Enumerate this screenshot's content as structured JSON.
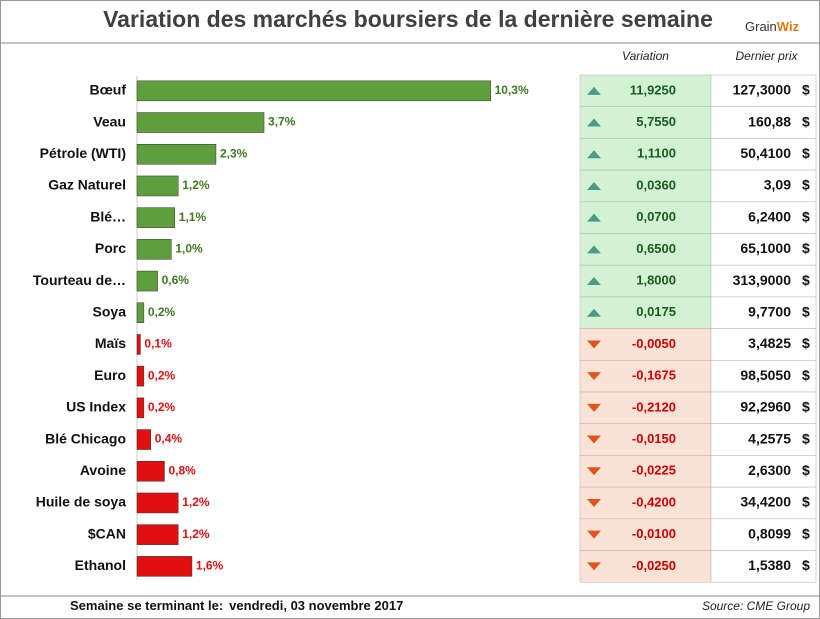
{
  "title": "Variation des marchés boursiers de la dernière semaine",
  "logo": {
    "left": "Grain",
    "right": "Wiz"
  },
  "chart_data": {
    "type": "bar",
    "orientation": "horizontal",
    "categories": [
      "Bœuf",
      "Veau",
      "Pétrole (WTI)",
      "Gaz Naturel",
      "Blé…",
      "Porc",
      "Tourteau de…",
      "Soya",
      "Maïs",
      "Euro",
      "US Index",
      "Blé Chicago",
      "Avoine",
      "Huile de soya",
      "$CAN",
      "Ethanol"
    ],
    "values": [
      10.3,
      3.7,
      2.3,
      1.2,
      1.1,
      1.0,
      0.6,
      0.2,
      0.1,
      0.2,
      0.2,
      0.4,
      0.8,
      1.2,
      1.2,
      1.6
    ],
    "value_labels": [
      "10,3%",
      "3,7%",
      "2,3%",
      "1,2%",
      "1,1%",
      "1,0%",
      "0,6%",
      "0,2%",
      "0,1%",
      "0,2%",
      "0,2%",
      "0,4%",
      "0,8%",
      "1,2%",
      "1,2%",
      "1,6%"
    ],
    "colors": [
      "#5f9e3c",
      "#5f9e3c",
      "#5f9e3c",
      "#5f9e3c",
      "#5f9e3c",
      "#5f9e3c",
      "#5f9e3c",
      "#5f9e3c",
      "#e01010",
      "#e01010",
      "#e01010",
      "#e01010",
      "#e01010",
      "#e01010",
      "#e01010",
      "#e01010"
    ],
    "xlim": [
      0,
      12
    ]
  },
  "table": {
    "headers": [
      "Variation",
      "Dernier prix"
    ],
    "currency": "$",
    "rows": [
      {
        "direction": "up",
        "variation": "11,9250",
        "price": "127,3000"
      },
      {
        "direction": "up",
        "variation": "5,7550",
        "price": "160,88"
      },
      {
        "direction": "up",
        "variation": "1,1100",
        "price": "50,4100"
      },
      {
        "direction": "up",
        "variation": "0,0360",
        "price": "3,09"
      },
      {
        "direction": "up",
        "variation": "0,0700",
        "price": "6,2400"
      },
      {
        "direction": "up",
        "variation": "0,6500",
        "price": "65,1000"
      },
      {
        "direction": "up",
        "variation": "1,8000",
        "price": "313,9000"
      },
      {
        "direction": "up",
        "variation": "0,0175",
        "price": "9,7700"
      },
      {
        "direction": "down",
        "variation": "-0,0050",
        "price": "3,4825"
      },
      {
        "direction": "down",
        "variation": "-0,1675",
        "price": "98,5050"
      },
      {
        "direction": "down",
        "variation": "-0,2120",
        "price": "92,2960"
      },
      {
        "direction": "down",
        "variation": "-0,0150",
        "price": "4,2575"
      },
      {
        "direction": "down",
        "variation": "-0,0225",
        "price": "2,6300"
      },
      {
        "direction": "down",
        "variation": "-0,4200",
        "price": "34,4200"
      },
      {
        "direction": "down",
        "variation": "-0,0100",
        "price": "0,8099"
      },
      {
        "direction": "down",
        "variation": "-0,0250",
        "price": "1,5380"
      }
    ]
  },
  "footer": {
    "label": "Semaine se terminant le:",
    "date": "vendredi, 03 novembre 2017",
    "source": "Source: CME Group"
  }
}
